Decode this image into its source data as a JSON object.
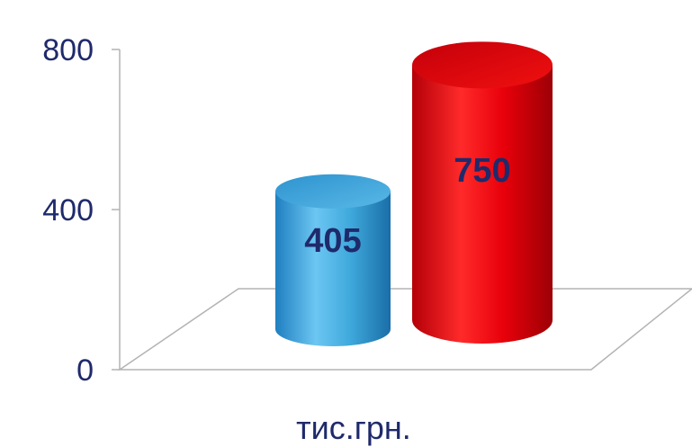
{
  "chart_data": {
    "type": "bar",
    "shape": "cylinder",
    "categories": [
      "",
      ""
    ],
    "series": [
      {
        "values": [
          405,
          null
        ],
        "color": "#3fa9dc"
      },
      {
        "values": [
          null,
          750
        ],
        "color": "#e8000a"
      }
    ],
    "values": [
      405,
      750
    ],
    "colors": [
      "#3fa9dc",
      "#e8000a"
    ],
    "data_labels": [
      "405",
      "750"
    ],
    "ylim": [
      0,
      800
    ],
    "yticks": [
      "0",
      "400",
      "800"
    ],
    "unit_label": "тис.грн.",
    "title": "",
    "xlabel": "",
    "ylabel": "",
    "grid": false,
    "legend": "none"
  }
}
